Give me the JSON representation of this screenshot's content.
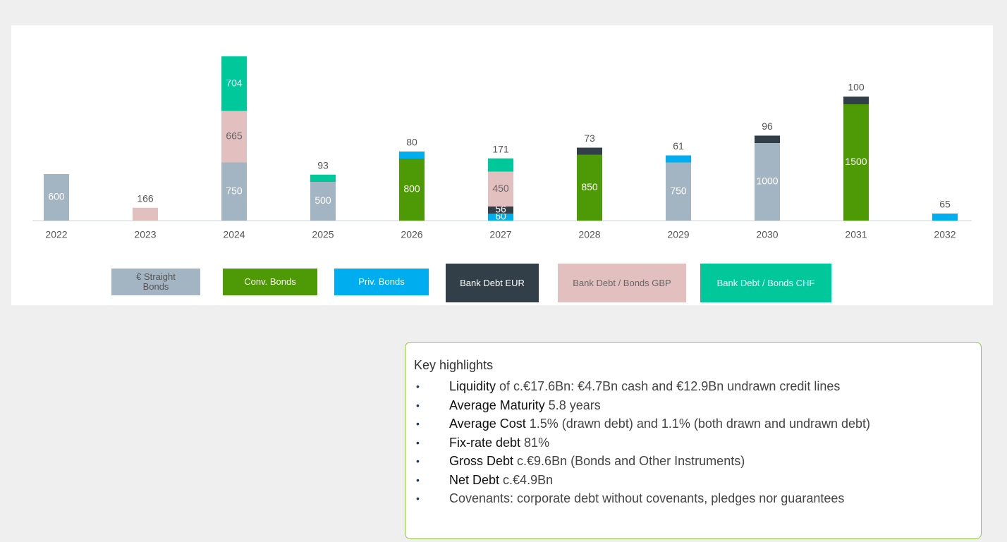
{
  "chart_data": {
    "type": "bar",
    "stacked": true,
    "categories": [
      "2022",
      "2023",
      "2024",
      "2025",
      "2026",
      "2027",
      "2028",
      "2029",
      "2030",
      "2031",
      "2032"
    ],
    "series": [
      {
        "name": "€ Straight Bonds",
        "color": "#a3b5c3",
        "values": [
          600,
          null,
          750,
          500,
          null,
          null,
          null,
          750,
          1000,
          null,
          null
        ]
      },
      {
        "name": "Conv. Bonds",
        "color": "#4e9a06",
        "values": [
          null,
          null,
          null,
          null,
          800,
          null,
          850,
          null,
          null,
          1500,
          null
        ]
      },
      {
        "name": "Priv. Bonds",
        "color": "#00aeef",
        "values": [
          null,
          null,
          null,
          null,
          80,
          60,
          null,
          61,
          null,
          null,
          65
        ]
      },
      {
        "name": "Bank Debt EUR",
        "color": "#333f48",
        "values": [
          null,
          null,
          null,
          null,
          null,
          56,
          73,
          null,
          96,
          100,
          null
        ]
      },
      {
        "name": "Bank Debt / Bonds GBP",
        "color": "#e2c0c0",
        "values": [
          null,
          166,
          665,
          null,
          null,
          450,
          null,
          null,
          null,
          null,
          null
        ]
      },
      {
        "name": "Bank Debt / Bonds CHF",
        "color": "#00c89a",
        "values": [
          null,
          null,
          704,
          93,
          null,
          171,
          null,
          null,
          null,
          null,
          null
        ]
      }
    ]
  },
  "highlights": {
    "title": "Key highlights",
    "items": [
      {
        "bold": "Liquidity",
        "text": " of c.€17.6Bn: €4.7Bn cash and €12.9Bn undrawn credit lines"
      },
      {
        "bold": "Average Maturity",
        "text": " 5.8 years"
      },
      {
        "bold": "Average Cost",
        "text": " 1.5% (drawn debt) and 1.1% (both drawn and undrawn debt)"
      },
      {
        "bold": "Fix-rate debt",
        "text": " 81%"
      },
      {
        "bold": "Gross Debt",
        "text": " c.€9.6Bn (Bonds and Other Instruments)"
      },
      {
        "bold": "Net Debt",
        "text": " c.€4.9Bn"
      },
      {
        "text": "Covenants: corporate debt without covenants, pledges nor guarantees"
      }
    ]
  }
}
